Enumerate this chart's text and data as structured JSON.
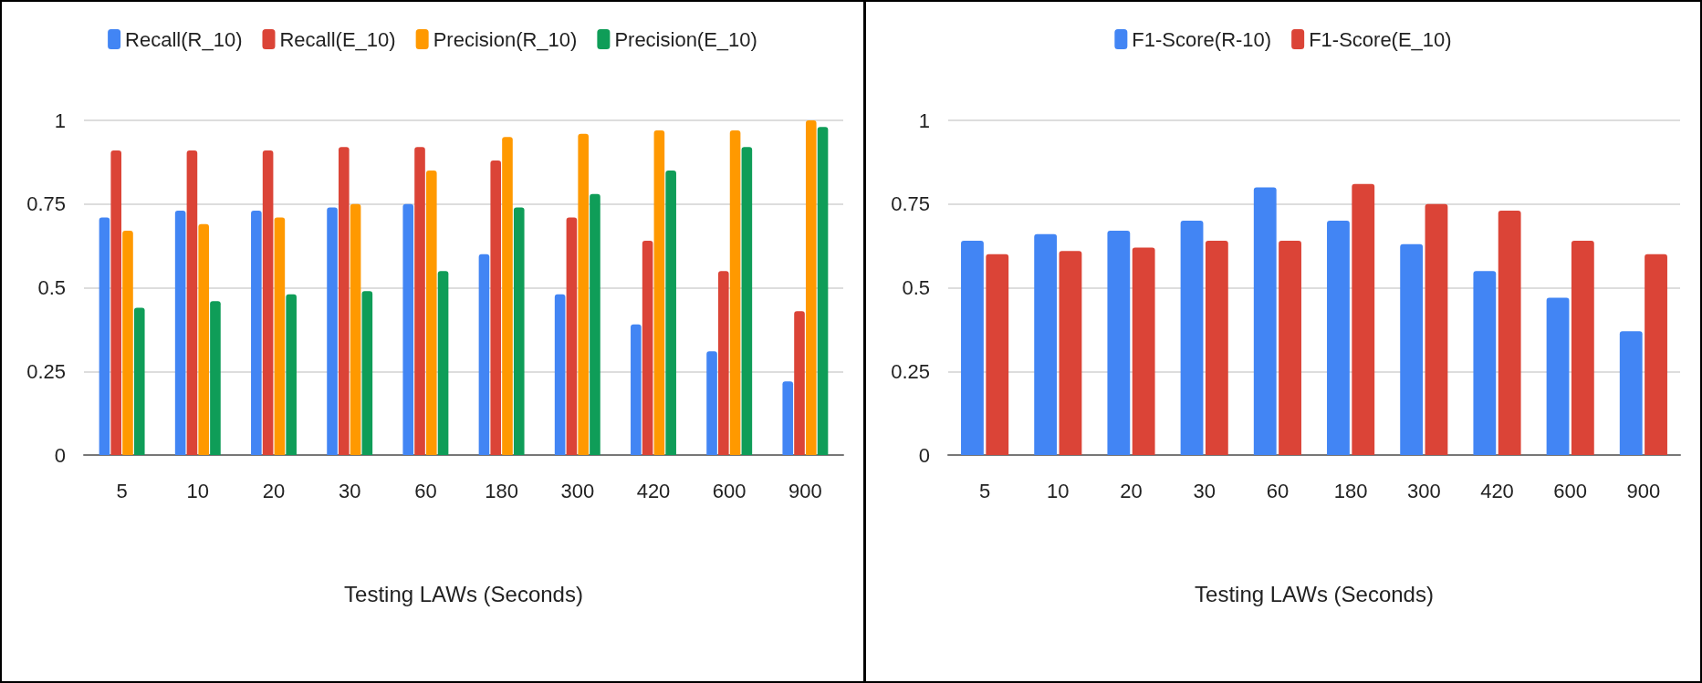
{
  "chart_data": [
    {
      "type": "bar",
      "xlabel": "Testing LAWs (Seconds)",
      "categories": [
        "5",
        "10",
        "20",
        "30",
        "60",
        "180",
        "300",
        "420",
        "600",
        "900"
      ],
      "series": [
        {
          "name": "Recall(R_10)",
          "color": "#4285f4",
          "values": [
            0.71,
            0.73,
            0.73,
            0.74,
            0.75,
            0.6,
            0.48,
            0.39,
            0.31,
            0.22
          ]
        },
        {
          "name": "Recall(E_10)",
          "color": "#db4437",
          "values": [
            0.91,
            0.91,
            0.91,
            0.92,
            0.92,
            0.88,
            0.71,
            0.64,
            0.55,
            0.43
          ]
        },
        {
          "name": "Precision(R_10)",
          "color": "#ff9900",
          "values": [
            0.67,
            0.69,
            0.71,
            0.75,
            0.85,
            0.95,
            0.96,
            0.97,
            0.97,
            1.0
          ]
        },
        {
          "name": "Precision(E_10)",
          "color": "#0f9d58",
          "values": [
            0.44,
            0.46,
            0.48,
            0.49,
            0.55,
            0.74,
            0.78,
            0.85,
            0.92,
            0.98
          ]
        }
      ],
      "ylim": [
        0,
        1
      ],
      "yticks": [
        0,
        0.25,
        0.5,
        0.75,
        1
      ],
      "grid": "y",
      "legend": "top"
    },
    {
      "type": "bar",
      "xlabel": "Testing LAWs (Seconds)",
      "categories": [
        "5",
        "10",
        "20",
        "30",
        "60",
        "180",
        "300",
        "420",
        "600",
        "900"
      ],
      "series": [
        {
          "name": "F1-Score(R-10)",
          "color": "#4285f4",
          "values": [
            0.64,
            0.66,
            0.67,
            0.7,
            0.8,
            0.7,
            0.63,
            0.55,
            0.47,
            0.37
          ]
        },
        {
          "name": "F1-Score(E_10)",
          "color": "#db4437",
          "values": [
            0.6,
            0.61,
            0.62,
            0.64,
            0.64,
            0.81,
            0.75,
            0.73,
            0.64,
            0.6
          ]
        }
      ],
      "ylim": [
        0,
        1
      ],
      "yticks": [
        0,
        0.25,
        0.5,
        0.75,
        1
      ],
      "grid": "y",
      "legend": "top"
    }
  ]
}
